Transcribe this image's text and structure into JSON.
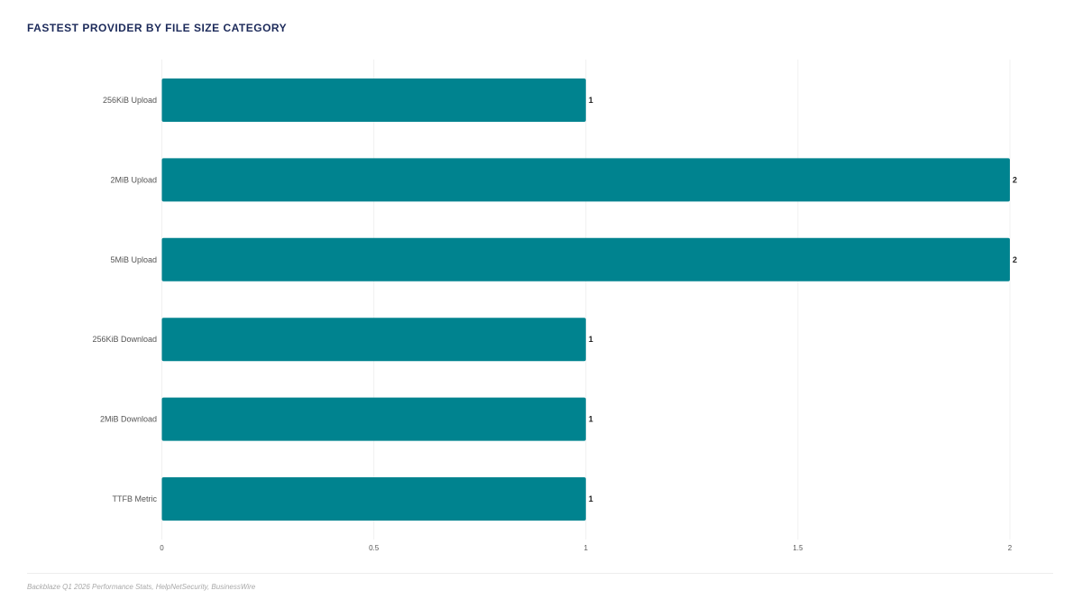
{
  "title": "FASTEST PROVIDER BY FILE SIZE CATEGORY",
  "source": "Backblaze Q1 2026 Performance Stats, HelpNetSecurity, BusinessWire",
  "colors": {
    "bar": "#00838f",
    "title": "#1c2a5a",
    "tick_label": "#555555",
    "data_label": "#222222",
    "grid": "#f0f0f0"
  },
  "chart_data": {
    "type": "bar",
    "orientation": "horizontal",
    "title": "FASTEST PROVIDER BY FILE SIZE CATEGORY",
    "categories": [
      "256KiB Upload",
      "2MiB Upload",
      "5MiB Upload",
      "256KiB Download",
      "2MiB Download",
      "TTFB Metric"
    ],
    "values": [
      1,
      2,
      2,
      1,
      1,
      1
    ],
    "data_labels": [
      "1",
      "2",
      "2",
      "1",
      "1",
      "1"
    ],
    "xlim": [
      0,
      2
    ],
    "x_ticks": [
      0,
      0.5,
      1,
      1.5,
      2
    ],
    "x_tick_labels": [
      "0",
      "0.5",
      "1",
      "1.5",
      "2"
    ],
    "xlabel": "",
    "ylabel": "",
    "grid": true,
    "legend": "none"
  }
}
